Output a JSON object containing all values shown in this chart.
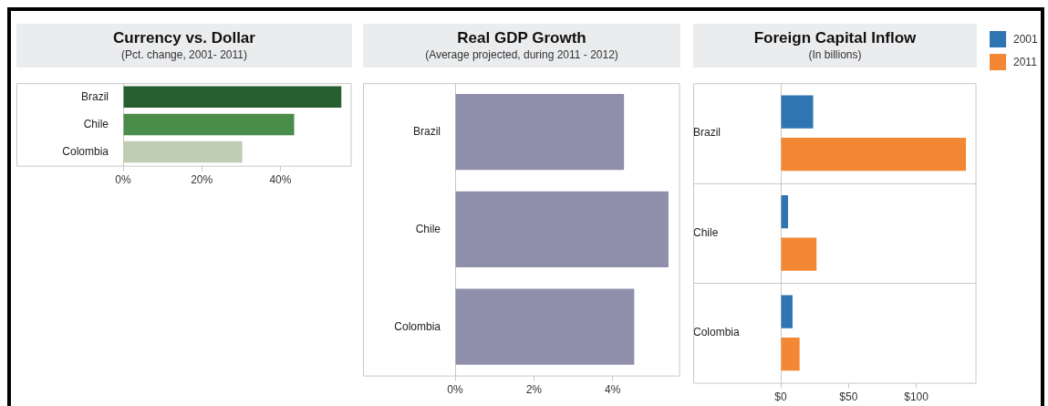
{
  "chart_data": [
    {
      "type": "bar",
      "orientation": "horizontal",
      "title": "Currency vs. Dollar",
      "subtitle": "(Pct. change, 2001- 2011)",
      "categories": [
        "Brazil",
        "Chile",
        "Colombia"
      ],
      "values": [
        55.5,
        43.5,
        30.3
      ],
      "colors": [
        "#265e30",
        "#4a8c4a",
        "#c0cdb5"
      ],
      "xlim": [
        0,
        58
      ],
      "xticks": [
        {
          "value": 0,
          "label": "0%"
        },
        {
          "value": 20,
          "label": "20%"
        },
        {
          "value": 40,
          "label": "40%"
        }
      ],
      "legend": false
    },
    {
      "type": "bar",
      "orientation": "horizontal",
      "title": "Real GDP Growth",
      "subtitle": "(Average projected, during 2011 - 2012)",
      "categories": [
        "Brazil",
        "Chile",
        "Colombia"
      ],
      "values": [
        4.29,
        5.42,
        4.55
      ],
      "color": "#8f8fab",
      "xlim": [
        0,
        5.7
      ],
      "xticks": [
        {
          "value": 0,
          "label": "0%"
        },
        {
          "value": 2,
          "label": "2%"
        },
        {
          "value": 4,
          "label": "4%"
        }
      ],
      "legend": false
    },
    {
      "type": "bar",
      "orientation": "horizontal",
      "title": "Foreign Capital Inflow",
      "subtitle": "(In billions)",
      "categories": [
        "Brazil",
        "Chile",
        "Colombia"
      ],
      "series": [
        {
          "name": "2001",
          "color": "#2e75b1",
          "values": [
            23.9,
            5.4,
            8.7
          ]
        },
        {
          "name": "2011",
          "color": "#f48733",
          "values": [
            136.6,
            26.4,
            13.9
          ]
        }
      ],
      "xlim": [
        0,
        144
      ],
      "xticks": [
        {
          "value": 0,
          "label": "$0"
        },
        {
          "value": 50,
          "label": "$50"
        },
        {
          "value": 100,
          "label": "$100"
        }
      ],
      "legend": "top right"
    }
  ]
}
